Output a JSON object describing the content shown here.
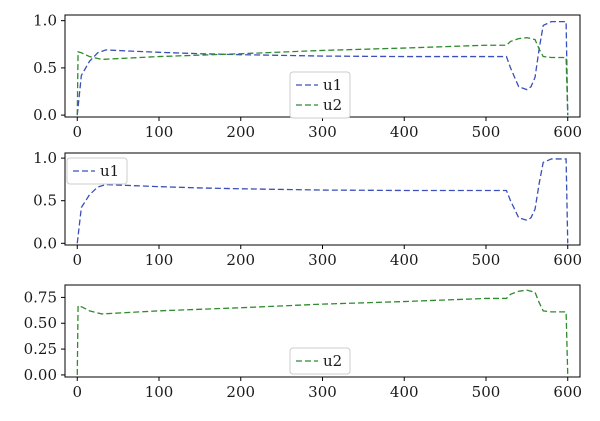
{
  "colors": {
    "u1": "#3b4fb8",
    "u2": "#2e8b2e"
  },
  "chart_data": [
    {
      "type": "line",
      "xlim": [
        -15,
        615
      ],
      "ylim": [
        -0.02,
        1.06
      ],
      "xticks": [
        0,
        100,
        200,
        300,
        400,
        500,
        600
      ],
      "yticks": [
        0.0,
        0.5,
        1.0
      ],
      "ytick_labels": [
        "0.0",
        "0.5",
        "1.0"
      ],
      "legend_position": "lower-center",
      "series": [
        {
          "name": "u1",
          "color_key": "u1",
          "x": [
            0,
            5,
            15,
            25,
            35,
            60,
            100,
            150,
            200,
            300,
            400,
            500,
            525,
            530,
            540,
            550,
            555,
            560,
            565,
            570,
            580,
            590,
            598,
            600
          ],
          "y": [
            0.0,
            0.42,
            0.57,
            0.66,
            0.69,
            0.68,
            0.665,
            0.65,
            0.64,
            0.625,
            0.62,
            0.62,
            0.62,
            0.5,
            0.3,
            0.27,
            0.3,
            0.4,
            0.7,
            0.95,
            0.99,
            0.99,
            0.99,
            0.0
          ]
        },
        {
          "name": "u2",
          "color_key": "u2",
          "x": [
            0,
            1,
            5,
            15,
            30,
            100,
            200,
            300,
            400,
            500,
            525,
            530,
            540,
            550,
            560,
            565,
            570,
            580,
            590,
            598,
            600
          ],
          "y": [
            0.0,
            0.67,
            0.66,
            0.62,
            0.59,
            0.62,
            0.65,
            0.685,
            0.71,
            0.74,
            0.74,
            0.78,
            0.81,
            0.82,
            0.8,
            0.7,
            0.62,
            0.61,
            0.61,
            0.61,
            0.0
          ]
        }
      ]
    },
    {
      "type": "line",
      "xlim": [
        -15,
        615
      ],
      "ylim": [
        -0.02,
        1.06
      ],
      "xticks": [
        0,
        100,
        200,
        300,
        400,
        500,
        600
      ],
      "yticks": [
        0.0,
        0.5,
        1.0
      ],
      "ytick_labels": [
        "0.0",
        "0.5",
        "1.0"
      ],
      "legend_position": "upper-left",
      "series": [
        {
          "name": "u1",
          "color_key": "u1",
          "x": [
            0,
            5,
            15,
            25,
            35,
            60,
            100,
            150,
            200,
            300,
            400,
            500,
            525,
            530,
            540,
            550,
            555,
            560,
            565,
            570,
            580,
            590,
            598,
            600
          ],
          "y": [
            0.0,
            0.42,
            0.57,
            0.66,
            0.69,
            0.68,
            0.665,
            0.65,
            0.64,
            0.625,
            0.62,
            0.62,
            0.62,
            0.5,
            0.3,
            0.27,
            0.3,
            0.4,
            0.7,
            0.95,
            0.99,
            0.99,
            0.99,
            0.0
          ]
        }
      ]
    },
    {
      "type": "line",
      "xlim": [
        -15,
        615
      ],
      "ylim": [
        -0.02,
        0.87
      ],
      "xticks": [
        0,
        100,
        200,
        300,
        400,
        500,
        600
      ],
      "yticks": [
        0.0,
        0.25,
        0.5,
        0.75
      ],
      "ytick_labels": [
        "0.00",
        "0.25",
        "0.50",
        "0.75"
      ],
      "legend_position": "lower-center",
      "series": [
        {
          "name": "u2",
          "color_key": "u2",
          "x": [
            0,
            1,
            5,
            15,
            30,
            100,
            200,
            300,
            400,
            500,
            525,
            530,
            540,
            550,
            560,
            565,
            570,
            580,
            590,
            598,
            600
          ],
          "y": [
            0.0,
            0.67,
            0.66,
            0.62,
            0.59,
            0.62,
            0.65,
            0.685,
            0.71,
            0.74,
            0.74,
            0.78,
            0.81,
            0.82,
            0.8,
            0.7,
            0.62,
            0.61,
            0.61,
            0.61,
            0.0
          ]
        }
      ]
    }
  ]
}
